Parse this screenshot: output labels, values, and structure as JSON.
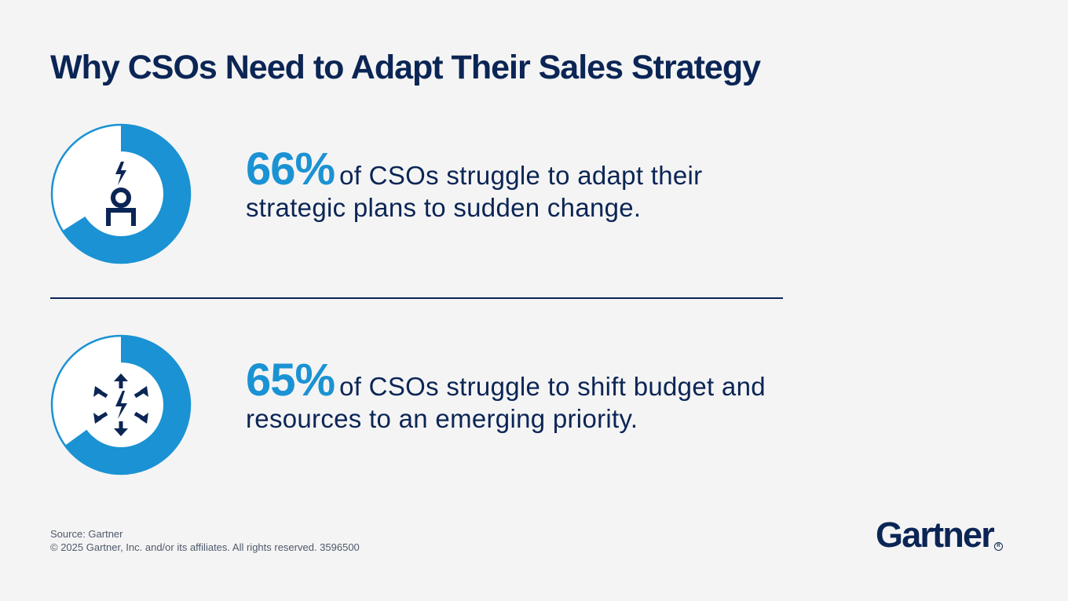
{
  "title": "Why CSOs Need to Adapt Their Sales Strategy",
  "chart_data": [
    {
      "type": "pie",
      "variant": "donut",
      "value": 66,
      "unit": "%",
      "display_value": "66%",
      "caption": "of CSOs struggle to adapt their strategic plans to sudden change.",
      "icon": "person-lightning-icon",
      "colors": {
        "filled": "#1b92d3",
        "remainder": "#ffffff",
        "outline": "#1b92d3"
      }
    },
    {
      "type": "pie",
      "variant": "donut",
      "value": 65,
      "unit": "%",
      "display_value": "65%",
      "caption": "of CSOs struggle to shift budget and resources to an emerging priority.",
      "icon": "arrows-lightning-icon",
      "colors": {
        "filled": "#1b92d3",
        "remainder": "#ffffff",
        "outline": "#1b92d3"
      }
    }
  ],
  "footer": {
    "source": "Source: Gartner",
    "copyright": "© 2025 Gartner, Inc. and/or its affiliates. All rights reserved. 3596500"
  },
  "brand": {
    "name": "Gartner",
    "mark": "R"
  },
  "colors": {
    "navy": "#0b2555",
    "accent": "#1b92d3",
    "background": "#f4f4f4"
  }
}
